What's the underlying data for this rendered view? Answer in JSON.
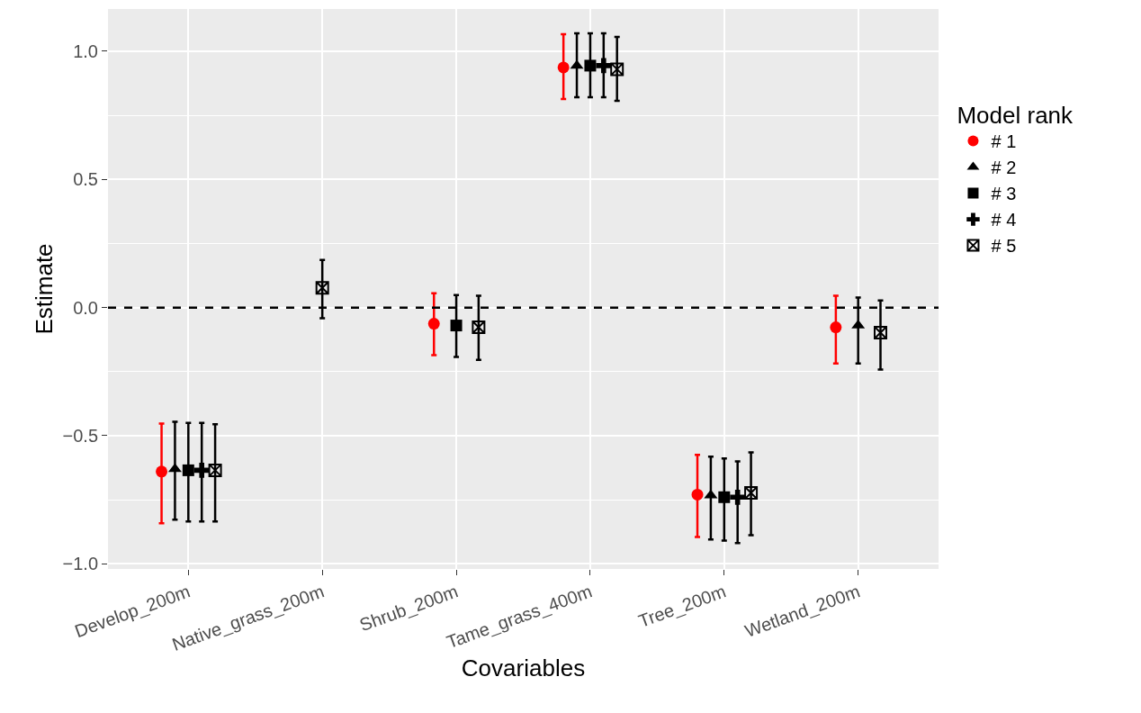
{
  "chart_data": {
    "type": "scatter",
    "xlabel": "Covariables",
    "ylabel": "Estimate",
    "legend_title": "Model rank",
    "legend": "right",
    "grid": true,
    "categories": [
      "Develop_200m",
      "Native_grass_200m",
      "Shrub_200m",
      "Tame_grass_400m",
      "Tree_200m",
      "Wetland_200m"
    ],
    "ylim": [
      -1.02,
      1.165
    ],
    "yticks": [
      {
        "value": -1,
        "label": "−1.0"
      },
      {
        "value": -0.5,
        "label": "−0.5"
      },
      {
        "value": 0,
        "label": "0.0"
      },
      {
        "value": 0.5,
        "label": "0.5"
      },
      {
        "value": 1,
        "label": "1.0"
      }
    ],
    "ref_lines": [
      {
        "axis": "y",
        "value": 0,
        "color": "#000000",
        "line_style": "dashed"
      }
    ],
    "series": [
      {
        "name": "# 1",
        "color": "#ff0000",
        "marker": "circle",
        "values": [
          -0.64,
          null,
          -0.063,
          0.937,
          -0.73,
          -0.077
        ],
        "errors": [
          [
            -0.842,
            -0.453
          ],
          null,
          [
            -0.186,
            0.056
          ],
          [
            0.814,
            1.067
          ],
          [
            -0.895,
            -0.575
          ],
          [
            -0.218,
            0.046
          ]
        ]
      },
      {
        "name": "# 2",
        "color": "#000000",
        "marker": "triangle",
        "values": [
          -0.63,
          null,
          null,
          0.944,
          -0.733,
          -0.07
        ],
        "errors": [
          [
            -0.828,
            -0.446
          ],
          null,
          null,
          [
            0.821,
            1.07
          ],
          [
            -0.905,
            -0.582
          ],
          [
            -0.218,
            0.039
          ]
        ]
      },
      {
        "name": "# 3",
        "color": "#000000",
        "marker": "square",
        "values": [
          -0.635,
          null,
          -0.07,
          0.944,
          -0.74,
          null
        ],
        "errors": [
          [
            -0.835,
            -0.45
          ],
          null,
          [
            -0.193,
            0.049
          ],
          [
            0.821,
            1.07
          ],
          [
            -0.909,
            -0.589
          ],
          null
        ]
      },
      {
        "name": "# 4",
        "color": "#000000",
        "marker": "cross",
        "values": [
          -0.635,
          null,
          null,
          0.944,
          -0.74,
          null
        ],
        "errors": [
          [
            -0.835,
            -0.45
          ],
          null,
          null,
          [
            0.821,
            1.07
          ],
          [
            -0.919,
            -0.6
          ],
          null
        ]
      },
      {
        "name": "# 5",
        "color": "#000000",
        "values": [
          -0.635,
          0.077,
          -0.077,
          0.93,
          -0.723,
          -0.098
        ],
        "errors": [
          [
            -0.835,
            -0.455
          ],
          [
            -0.042,
            0.186
          ],
          [
            -0.204,
            0.046
          ],
          [
            0.807,
            1.056
          ],
          [
            -0.888,
            -0.565
          ],
          [
            -0.242,
            0.028
          ]
        ]
      }
    ]
  }
}
